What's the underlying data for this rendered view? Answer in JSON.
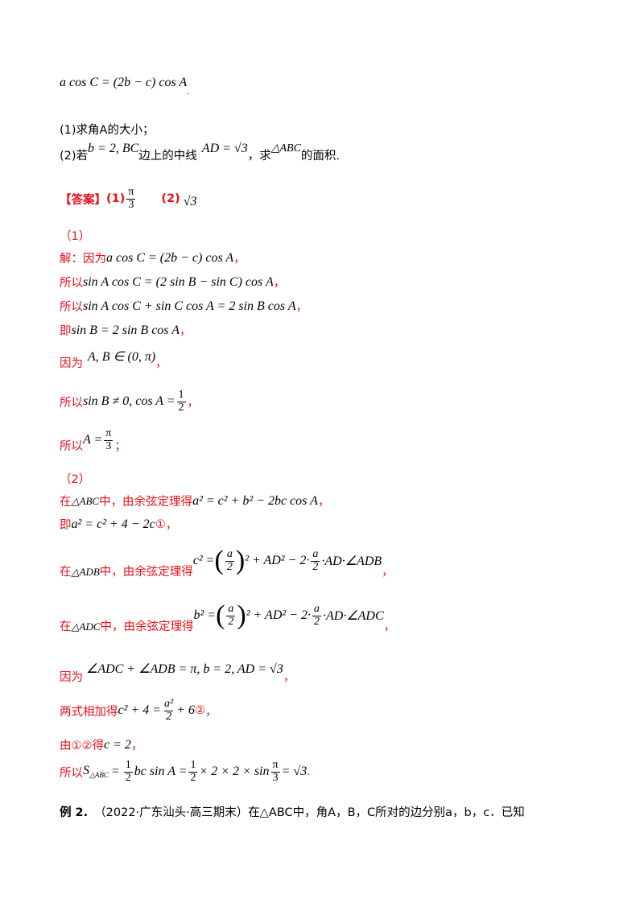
{
  "q_eq": "a cos C = (2b − c) cos A",
  "q_eq_dot": ".",
  "q1": "(1)求角A的大小；",
  "q2_pre": "(2)若",
  "q2_cond": "b = 2, BC",
  "q2_mid": " 边上的中线",
  "q2_ad": "AD = √3",
  "q2_mid2": "，求",
  "q2_tri": "△ABC",
  "q2_end": "的面积.",
  "ans_label": "【答案】",
  "ans1_label": "(1)",
  "ans1_num": "π",
  "ans1_den": "3",
  "ans2_label": "(2)",
  "ans2_val": "√3",
  "p1_head": "（1）",
  "s1_pre": "解：因为",
  "s1_eq": "a cos C = (2b − c) cos A",
  "s1_end": "，",
  "s2_pre": "所以",
  "s2_eq": "sin A cos C = (2 sin B − sin C) cos A",
  "s2_end": "，",
  "s3_pre": "所以",
  "s3_eq": "sin A cos C + sin C cos A = 2 sin B cos A",
  "s3_end": "，",
  "s4_pre": "即 ",
  "s4_eq": "sin B = 2 sin B cos A",
  "s4_end": "，",
  "s5_pre": "因为",
  "s5_eq": "A, B ∈ (0, π)",
  "s5_end": "，",
  "s6_pre": "所以 ",
  "s6_eq": "sin B ≠ 0, cos A =",
  "s6_num": "1",
  "s6_den": "2",
  "s6_end": "，",
  "s7_pre": "所以 ",
  "s7_eq": "A =",
  "s7_num": "π",
  "s7_den": "3",
  "s7_end": "；",
  "p2_head": "（2）",
  "t1_pre": "在",
  "t1_tri": "△ABC",
  "t1_mid": "中，由余弦定理得",
  "t1_eq": "a² = c² + b² − 2bc cos A",
  "t1_end": "，",
  "t2_pre": "即",
  "t2_eq": "a² = c² + 4 − 2c",
  "t2_mark": "①",
  "t2_end": "，",
  "t3_pre": "在",
  "t3_tri": "△ADB",
  "t3_mid": "中，由余弦定理得",
  "t3_lhs": "c² =",
  "t3_pnum": "a",
  "t3_pden": "2",
  "t3_rest": "² + AD² − 2·",
  "t3_fnum": "a",
  "t3_fden": "2",
  "t3_tail": "·AD·∠ADB",
  "t3_end": "，",
  "t4_pre": "在",
  "t4_tri": "△ADC",
  "t4_mid": "中，由余弦定理得",
  "t4_lhs": "b² =",
  "t4_pnum": "a",
  "t4_pden": "2",
  "t4_rest": "² + AD² − 2·",
  "t4_fnum": "a",
  "t4_fden": "2",
  "t4_tail": "·AD·∠ADC",
  "t4_end": "，",
  "t5_pre": "因为",
  "t5_eq": "∠ADC + ∠ADB = π, b = 2, AD = √3",
  "t5_end": "，",
  "t6_pre": "两式相加得",
  "t6_eq": "c² + 4 =",
  "t6_num": "a²",
  "t6_den": "2",
  "t6_tail": "+ 6",
  "t6_mark": "②",
  "t6_end": "，",
  "t7_pre": "由①②得",
  "t7_eq": "c = 2",
  "t7_end": "，",
  "t8_pre": "所以",
  "t8_s": "S",
  "t8_sub": "△ABC",
  "t8_eq1": "=",
  "t8_n1": "1",
  "t8_d1": "2",
  "t8_eq2": "bc sin A =",
  "t8_n2": "1",
  "t8_d2": "2",
  "t8_eq3": "× 2 × 2 × sin",
  "t8_n3": "π",
  "t8_d3": "3",
  "t8_eq4": "= √3",
  "t8_end": ".",
  "ex_label": "例 2.",
  "ex_text": "（2022·广东汕头·高三期末）在△ABC中，角A，B，C所对的边分别a，b，c．已知"
}
